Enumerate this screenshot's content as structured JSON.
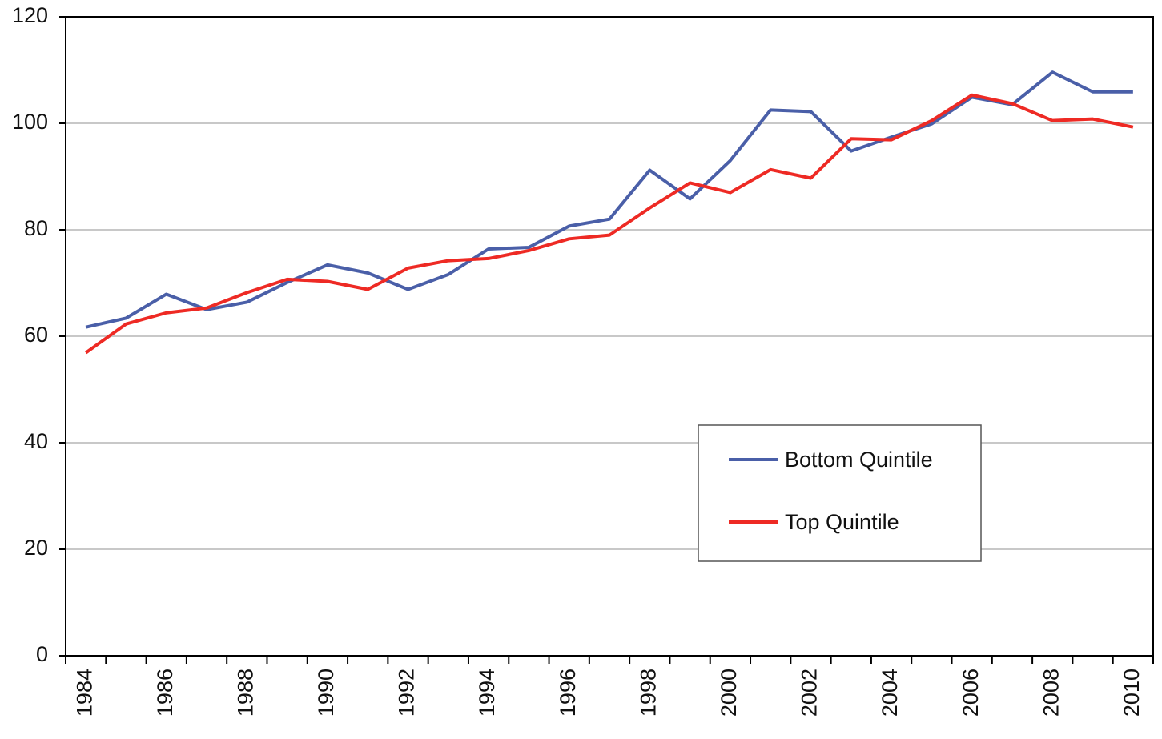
{
  "chart_data": {
    "type": "line",
    "categories": [
      "1984",
      null,
      "1986",
      null,
      "1988",
      null,
      "1990",
      null,
      "1992",
      null,
      "1994",
      null,
      "1996",
      null,
      "1998",
      null,
      "2000",
      null,
      "2002",
      null,
      "2004",
      null,
      "2006",
      null,
      "2008",
      null,
      "2010"
    ],
    "series": [
      {
        "name": "Bottom Quintile",
        "color": "#4a5fa8",
        "values": [
          61.7,
          63.4,
          67.9,
          65.0,
          66.4,
          70.1,
          73.4,
          71.9,
          68.8,
          71.6,
          76.4,
          76.7,
          80.7,
          82.0,
          91.2,
          85.8,
          93.0,
          102.5,
          102.2,
          94.8,
          97.4,
          99.9,
          104.9,
          103.5,
          109.6,
          105.9,
          105.9
        ]
      },
      {
        "name": "Top Quintile",
        "color": "#ee2a24",
        "values": [
          56.9,
          62.3,
          64.4,
          65.3,
          68.2,
          70.7,
          70.3,
          68.8,
          72.8,
          74.2,
          74.6,
          76.1,
          78.3,
          79.0,
          84.1,
          88.8,
          87.0,
          91.3,
          89.7,
          97.1,
          96.9,
          100.5,
          105.3,
          103.7,
          100.5,
          100.8,
          99.3
        ]
      }
    ],
    "ylim": [
      0,
      120
    ],
    "yticks": [
      0,
      20,
      40,
      60,
      80,
      100,
      120
    ],
    "grid": true,
    "legend": "lower right"
  }
}
